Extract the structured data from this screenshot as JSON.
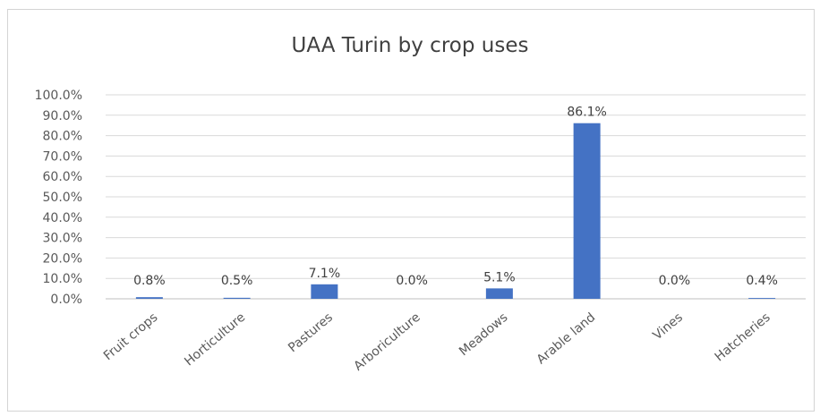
{
  "chart_data": {
    "type": "bar",
    "title": "UAA Turin by crop uses",
    "categories": [
      "Fruit crops",
      "Horticulture",
      "Pastures",
      "Arboriculture",
      "Meadows",
      "Arable land",
      "Vines",
      "Hatcheries"
    ],
    "values": [
      0.8,
      0.5,
      7.1,
      0.0,
      5.1,
      86.1,
      0.0,
      0.4
    ],
    "data_labels": [
      "0.8%",
      "0.5%",
      "7.1%",
      "0.0%",
      "5.1%",
      "86.1%",
      "0.0%",
      "0.4%"
    ],
    "y_ticks": [
      "0.0%",
      "10.0%",
      "20.0%",
      "30.0%",
      "40.0%",
      "50.0%",
      "60.0%",
      "70.0%",
      "80.0%",
      "90.0%",
      "100.0%"
    ],
    "ylim": [
      0,
      100
    ],
    "grid": true,
    "legend": "none",
    "colors": {
      "bar": "#4472c4",
      "grid": "#d9d9d9",
      "text": "#595959"
    }
  }
}
